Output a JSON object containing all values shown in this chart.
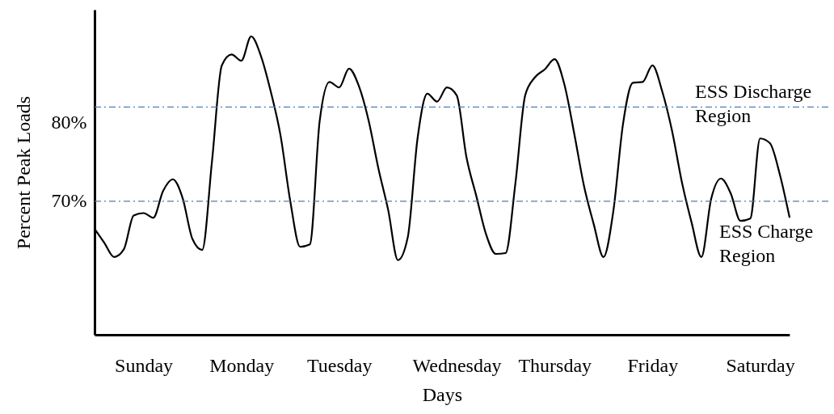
{
  "chart_data": {
    "type": "line",
    "xlabel": "Days",
    "ylabel": "Percent Peak Loads",
    "categories": [
      null,
      null,
      null,
      null,
      null,
      "Sunday",
      null,
      null,
      null,
      null,
      null,
      null,
      null,
      null,
      null,
      "Monday",
      null,
      null,
      null,
      null,
      null,
      null,
      null,
      null,
      null,
      "Tuesday",
      null,
      null,
      null,
      null,
      null,
      null,
      null,
      null,
      null,
      null,
      null,
      "Wednesday",
      null,
      null,
      null,
      null,
      null,
      null,
      null,
      null,
      null,
      "Thursday",
      null,
      null,
      null,
      null,
      null,
      null,
      null,
      null,
      null,
      "Friday",
      null,
      null,
      null,
      null,
      null,
      null,
      null,
      null,
      null,
      null,
      "Saturday",
      null,
      null,
      null
    ],
    "series": [
      {
        "color": "#000000",
        "values": [
          66.5,
          64.7,
          62.9,
          63.9,
          68.2,
          68.5,
          67.9,
          71.3,
          72.8,
          70.4,
          65.2,
          63.8,
          75.1,
          87.3,
          88.7,
          87.9,
          91.0,
          88.5,
          84.0,
          78.4,
          70.0,
          64.2,
          64.5,
          80.2,
          85.2,
          84.5,
          86.9,
          84.7,
          80.3,
          74.2,
          68.9,
          62.5,
          65.4,
          78.0,
          83.7,
          82.7,
          84.5,
          83.5,
          75.6,
          70.7,
          65.8,
          63.3,
          63.4,
          72.3,
          83.5,
          85.8,
          86.8,
          88.1,
          84.9,
          78.7,
          72.0,
          67.1,
          62.9,
          68.7,
          79.9,
          85.1,
          85.2,
          87.3,
          84.0,
          79.0,
          72.5,
          67.3,
          62.9,
          70.3,
          72.9,
          71.0,
          67.5,
          67.8,
          78.0,
          77.4,
          73.5,
          68.0
        ]
      }
    ],
    "ylim": [
      53,
      94.4
    ],
    "yticks": [
      {
        "value": 70,
        "label": "70%"
      },
      {
        "value": 80,
        "label": "80%"
      }
    ],
    "ref_lines": [
      {
        "axis": "y",
        "value": 82,
        "label": "ESS Discharge Region",
        "color": "#4a7ebb",
        "line_style": "dashed"
      },
      {
        "axis": "y",
        "value": 70,
        "label": "ESS Charge Region",
        "color": "#4a7ebb",
        "line_style": "dashed"
      }
    ],
    "grid": false,
    "marker": "none",
    "line_style": "solid"
  }
}
